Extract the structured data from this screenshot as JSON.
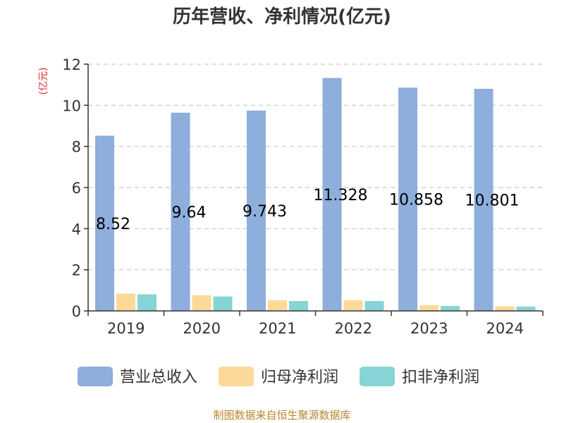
{
  "chart_data": {
    "type": "bar",
    "title": "历年营收、净利情况(亿元)",
    "ylabel": "(亿元)",
    "xlabel": "",
    "categories": [
      "2019",
      "2020",
      "2021",
      "2022",
      "2023",
      "2024"
    ],
    "ylim": [
      0,
      12
    ],
    "yticks": [
      0,
      2,
      4,
      6,
      8,
      10,
      12
    ],
    "grid": true,
    "legend_position": "bottom",
    "series": [
      {
        "name": "营业总收入",
        "color": "#8eaedb",
        "values": [
          8.52,
          9.64,
          9.743,
          11.328,
          10.858,
          10.801
        ],
        "labels": [
          "8.52",
          "9.64",
          "9.743",
          "11.328",
          "10.858",
          "10.801"
        ]
      },
      {
        "name": "归母净利润",
        "color": "#fdd999",
        "values": [
          0.84,
          0.76,
          0.52,
          0.52,
          0.28,
          0.22
        ]
      },
      {
        "name": "扣非净利润",
        "color": "#86d4d6",
        "values": [
          0.81,
          0.7,
          0.48,
          0.48,
          0.24,
          0.21
        ]
      }
    ]
  },
  "source": "制图数据来自恒生聚源数据库",
  "colors": {
    "ylabel": "#e8262d",
    "source": "#b8862b"
  }
}
